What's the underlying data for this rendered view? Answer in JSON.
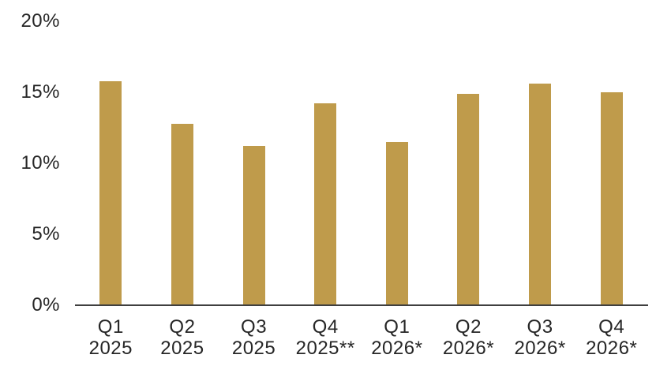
{
  "chart_data": {
    "type": "bar",
    "categories": [
      "Q1 2025",
      "Q2 2025",
      "Q3 2025",
      "Q4 2025**",
      "Q1 2026*",
      "Q2 2026*",
      "Q3 2026*",
      "Q4 2026*"
    ],
    "category_lines": [
      [
        "Q1",
        "2025"
      ],
      [
        "Q2",
        "2025"
      ],
      [
        "Q3",
        "2025"
      ],
      [
        "Q4",
        "2025**"
      ],
      [
        "Q1",
        "2026*"
      ],
      [
        "Q2",
        "2026*"
      ],
      [
        "Q3",
        "2026*"
      ],
      [
        "Q4",
        "2026*"
      ]
    ],
    "values": [
      15.8,
      12.8,
      11.2,
      14.2,
      11.5,
      14.9,
      15.6,
      15.0
    ],
    "unit": "%",
    "title": "",
    "xlabel": "",
    "ylabel": "",
    "ylim": [
      0,
      20
    ],
    "ytick_values": [
      0,
      5,
      10,
      15,
      20
    ],
    "ytick_labels": [
      "0%",
      "5%",
      "10%",
      "15%",
      "20%"
    ],
    "grid": false,
    "legend": false,
    "colors": {
      "bar": "#BF9B4B",
      "axis": "#3F3F3F",
      "text": "#262626",
      "background": "#FFFFFF"
    }
  }
}
